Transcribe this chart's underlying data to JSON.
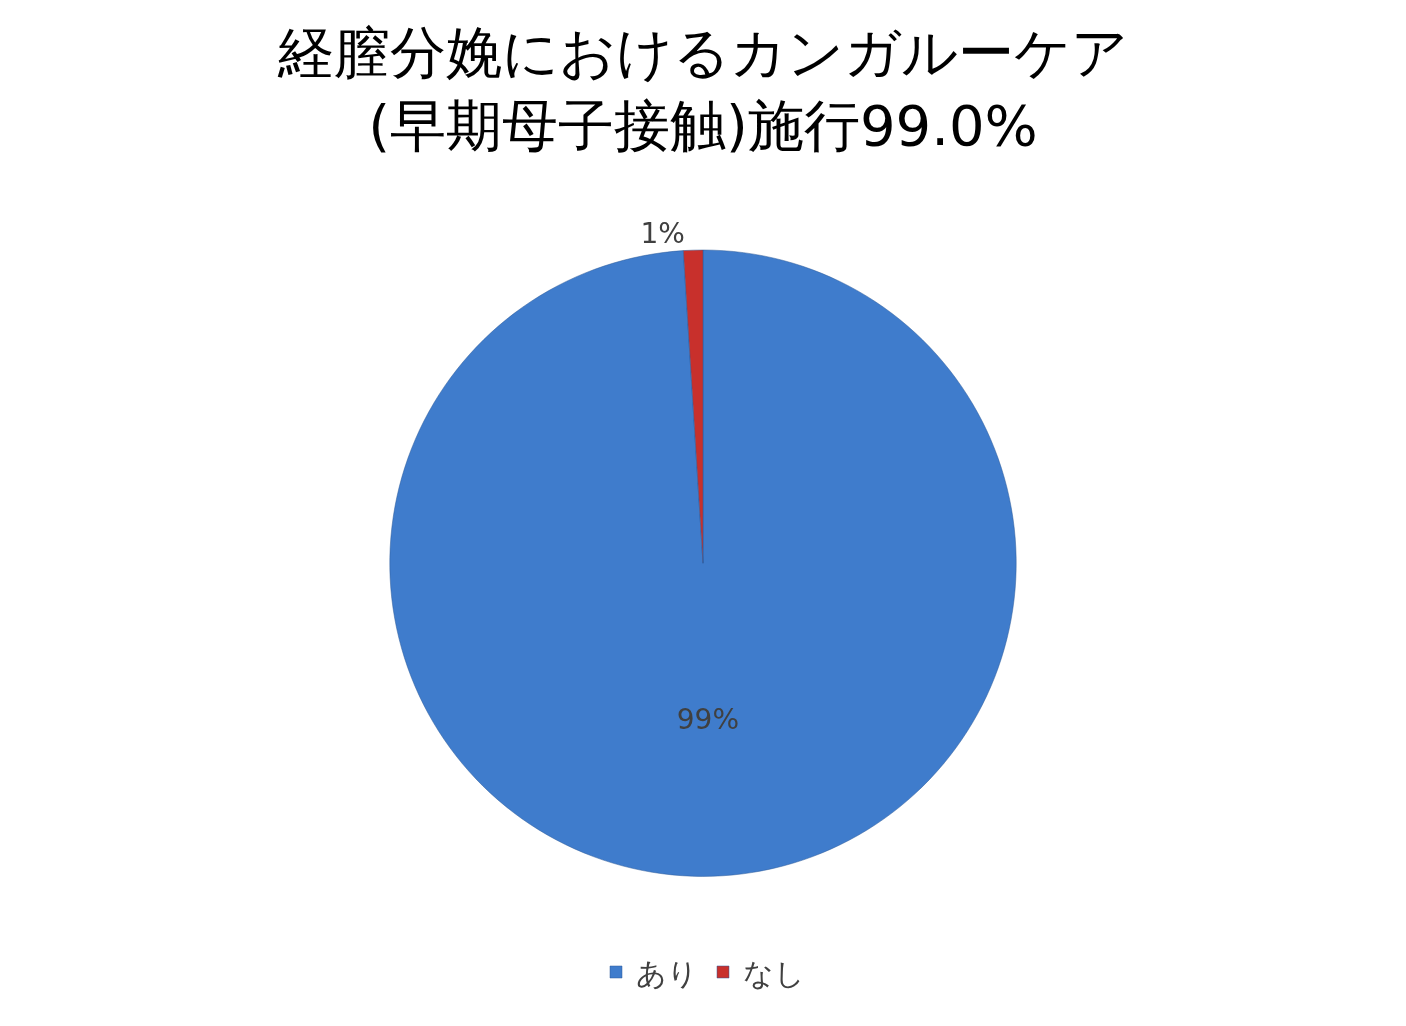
{
  "chart_data": {
    "type": "pie",
    "title": "経膣分娩におけるカンガルーケア\n(早期母子接触)施行99.0%",
    "categories": [
      "あり",
      "なし"
    ],
    "values": [
      99,
      1
    ],
    "colors": [
      "#3f7ccc",
      "#c8302c"
    ],
    "value_labels": [
      "99%",
      "1%"
    ],
    "legend": "bottom"
  }
}
